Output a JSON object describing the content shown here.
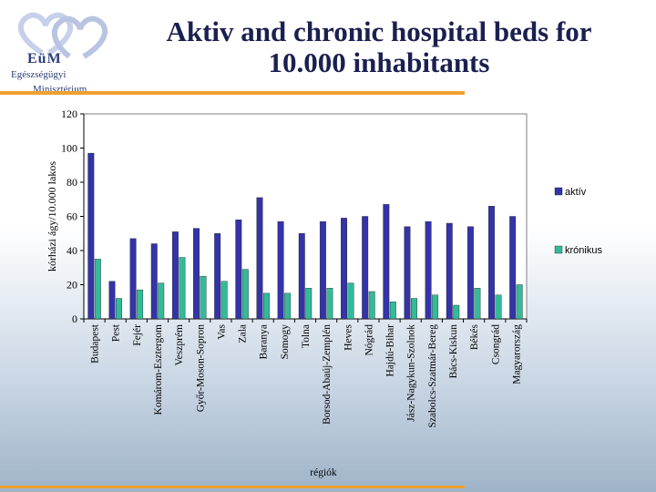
{
  "header": {
    "title_line1": "Aktiv and chronic hospital beds for",
    "title_line2": "10.000 inhabitants"
  },
  "logo": {
    "line1": "EüM",
    "line2": "Egészségügyi",
    "line3": "Minisztérium"
  },
  "colors": {
    "aktiv": "#3333aa",
    "kronikus": "#33bb99",
    "accent": "#f0a030",
    "title": "#1a2050"
  },
  "chart_data": {
    "type": "bar",
    "ylabel": "kórházi ágy/10.000 lakos",
    "xlabel": "régiók",
    "ylim": [
      0,
      120
    ],
    "yticks": [
      0,
      20,
      40,
      60,
      80,
      100,
      120
    ],
    "grid": false,
    "legend_position": "right",
    "categories": [
      "Budapest",
      "Pest",
      "Fejér",
      "Komárom-Esztergom",
      "Veszprém",
      "Győr-Moson-Sopron",
      "Vas",
      "Zala",
      "Baranya",
      "Somogy",
      "Tolna",
      "Borsod-Abaúj-Zemplén",
      "Heves",
      "Nógrád",
      "Hajdú-Bihar",
      "Jász-Nagykun-Szolnok",
      "Szabolcs-Szatmár-Bereg",
      "Bács-Kiskun",
      "Békés",
      "Csongrád",
      "Magyarország"
    ],
    "series": [
      {
        "name": "aktív",
        "values": [
          97,
          22,
          47,
          44,
          51,
          53,
          50,
          58,
          71,
          57,
          50,
          57,
          59,
          60,
          67,
          54,
          57,
          56,
          54,
          66,
          60
        ]
      },
      {
        "name": "krónikus",
        "values": [
          35,
          12,
          17,
          21,
          36,
          25,
          22,
          29,
          15,
          15,
          18,
          18,
          21,
          16,
          10,
          12,
          14,
          8,
          18,
          14,
          20
        ]
      }
    ]
  }
}
